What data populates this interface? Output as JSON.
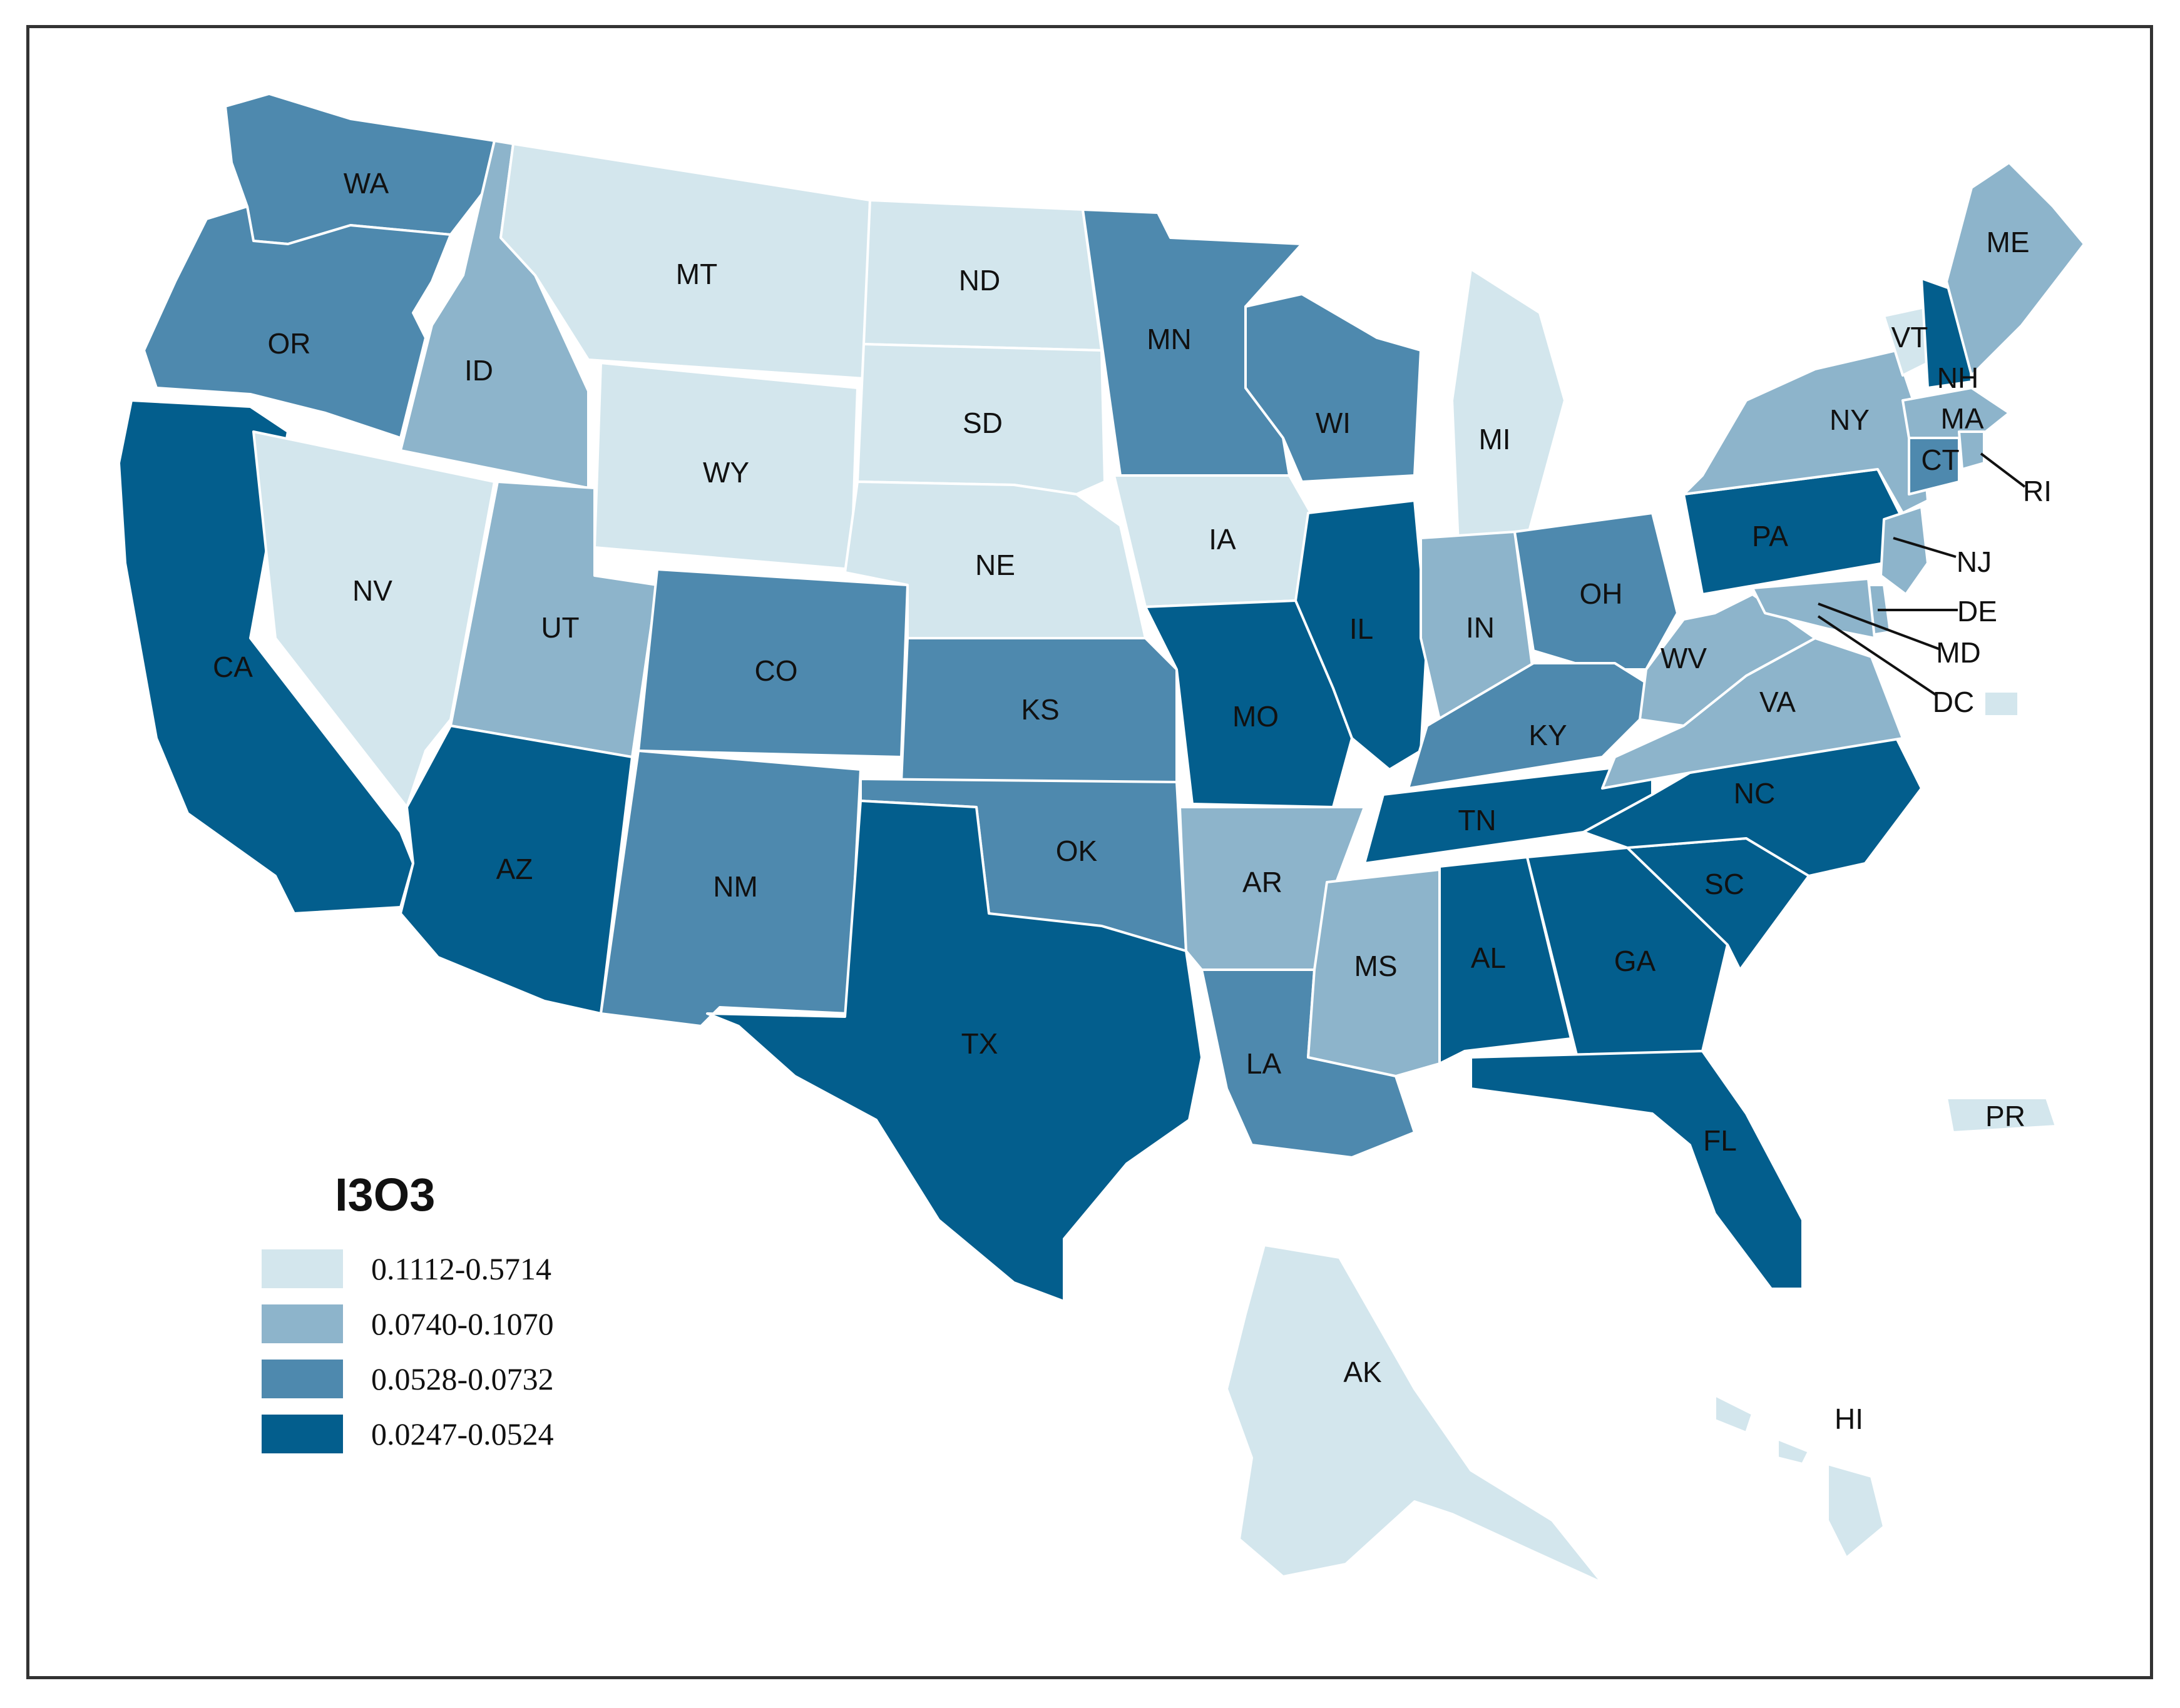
{
  "legend": {
    "title": "I3O3",
    "classes": [
      {
        "range": "0.1112-0.5714",
        "color": "#d3e6ed"
      },
      {
        "range": "0.0740-0.1070",
        "color": "#8db4cb"
      },
      {
        "range": "0.0528-0.0732",
        "color": "#4e89ae"
      },
      {
        "range": "0.0247-0.0524",
        "color": "#035e8d"
      }
    ]
  },
  "states": [
    {
      "abbr": "WA",
      "class": 2
    },
    {
      "abbr": "OR",
      "class": 2
    },
    {
      "abbr": "CA",
      "class": 3
    },
    {
      "abbr": "ID",
      "class": 1
    },
    {
      "abbr": "NV",
      "class": 0
    },
    {
      "abbr": "MT",
      "class": 0
    },
    {
      "abbr": "WY",
      "class": 0
    },
    {
      "abbr": "UT",
      "class": 1
    },
    {
      "abbr": "AZ",
      "class": 3
    },
    {
      "abbr": "CO",
      "class": 2
    },
    {
      "abbr": "NM",
      "class": 2
    },
    {
      "abbr": "ND",
      "class": 0
    },
    {
      "abbr": "SD",
      "class": 0
    },
    {
      "abbr": "NE",
      "class": 0
    },
    {
      "abbr": "KS",
      "class": 2
    },
    {
      "abbr": "OK",
      "class": 2
    },
    {
      "abbr": "TX",
      "class": 3
    },
    {
      "abbr": "MN",
      "class": 2
    },
    {
      "abbr": "IA",
      "class": 0
    },
    {
      "abbr": "MO",
      "class": 3
    },
    {
      "abbr": "AR",
      "class": 1
    },
    {
      "abbr": "LA",
      "class": 2
    },
    {
      "abbr": "WI",
      "class": 2
    },
    {
      "abbr": "IL",
      "class": 3
    },
    {
      "abbr": "MI",
      "class": 0
    },
    {
      "abbr": "IN",
      "class": 1
    },
    {
      "abbr": "OH",
      "class": 2
    },
    {
      "abbr": "KY",
      "class": 2
    },
    {
      "abbr": "TN",
      "class": 3
    },
    {
      "abbr": "MS",
      "class": 1
    },
    {
      "abbr": "AL",
      "class": 3
    },
    {
      "abbr": "GA",
      "class": 3
    },
    {
      "abbr": "FL",
      "class": 3
    },
    {
      "abbr": "SC",
      "class": 3
    },
    {
      "abbr": "NC",
      "class": 3
    },
    {
      "abbr": "VA",
      "class": 1
    },
    {
      "abbr": "WV",
      "class": 1
    },
    {
      "abbr": "PA",
      "class": 3
    },
    {
      "abbr": "NY",
      "class": 1
    },
    {
      "abbr": "VT",
      "class": 0
    },
    {
      "abbr": "NH",
      "class": 3
    },
    {
      "abbr": "ME",
      "class": 1
    },
    {
      "abbr": "MA",
      "class": 1
    },
    {
      "abbr": "CT",
      "class": 2
    },
    {
      "abbr": "RI",
      "class": 1
    },
    {
      "abbr": "NJ",
      "class": 1
    },
    {
      "abbr": "DE",
      "class": 1
    },
    {
      "abbr": "MD",
      "class": 1
    },
    {
      "abbr": "DC",
      "class": 0
    },
    {
      "abbr": "AK",
      "class": 0
    },
    {
      "abbr": "HI",
      "class": 0
    },
    {
      "abbr": "PR",
      "class": 0
    }
  ]
}
